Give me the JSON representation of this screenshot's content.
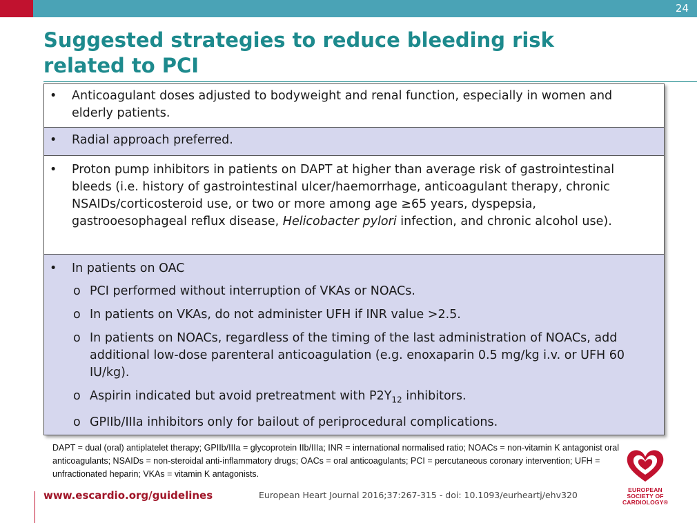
{
  "slide_number": "24",
  "title": "Suggested strategies to reduce bleeding risk related to PCI",
  "rows": [
    {
      "bullet": "•",
      "text": "Anticoagulant doses adjusted to bodyweight and renal function, especially in women and elderly patients."
    },
    {
      "bullet": "•",
      "text": "Radial approach preferred."
    },
    {
      "bullet": "•",
      "text_pre": "Proton pump inhibitors in patients on DAPT at higher than average risk of gastrointestinal bleeds (i.e. history of gastrointestinal ulcer/haemorrhage, anticoagulant therapy, chronic NSAIDs/corticosteroid use, or two or more among age ≥65 years, dyspepsia, gastrooesophageal reflux disease, ",
      "text_italic": "Helicobacter pylori",
      "text_post": " infection, and chronic alcohol use)."
    },
    {
      "bullet": "•",
      "text": "In patients on OAC",
      "subitems": [
        {
          "marker": "o",
          "text": "PCI performed without interruption of VKAs or NOACs."
        },
        {
          "marker": "o",
          "text": "In patients on VKAs, do not administer UFH if INR value >2.5."
        },
        {
          "marker": "o",
          "text": "In patients on NOACs, regardless of the timing of the last administration of NOACs, add additional low-dose parenteral anticoagulation (e.g. enoxaparin 0.5 mg/kg i.v. or UFH 60 IU/kg)."
        },
        {
          "marker": "o",
          "text_pre": "Aspirin indicated but avoid pretreatment with P2Y",
          "text_sub": "12",
          "text_post": " inhibitors."
        },
        {
          "marker": "o",
          "text": "GPIIb/IIIa inhibitors only for bailout of periprocedural complications."
        }
      ]
    }
  ],
  "footnote": "DAPT = dual (oral) antiplatelet therapy; GPIIb/IIIa = glycoprotein IIb/IIIa; INR = international normalised ratio; NOACs = non-vitamin K antagonist oral anticoagulants; NSAIDs = non-steroidal anti-inflammatory drugs; OACs = oral anticoagulants; PCI = percutaneous coronary intervention; UFH = unfractionated heparin; VKAs = vitamin K antagonists.",
  "footer": {
    "link": "www.escardio.org/guidelines",
    "citation": "European Heart Journal 2016;37:267-315 - doi: 10.1093/eurheartj/ehv320"
  },
  "logo": {
    "line1": "EUROPEAN",
    "line2": "SOCIETY OF",
    "line3": "CARDIOLOGY®"
  },
  "colors": {
    "header_bar": "#4aa3b6",
    "accent_red": "#c1122f",
    "title": "#1d8a8d",
    "row_lilac": "#d6d7ee"
  }
}
